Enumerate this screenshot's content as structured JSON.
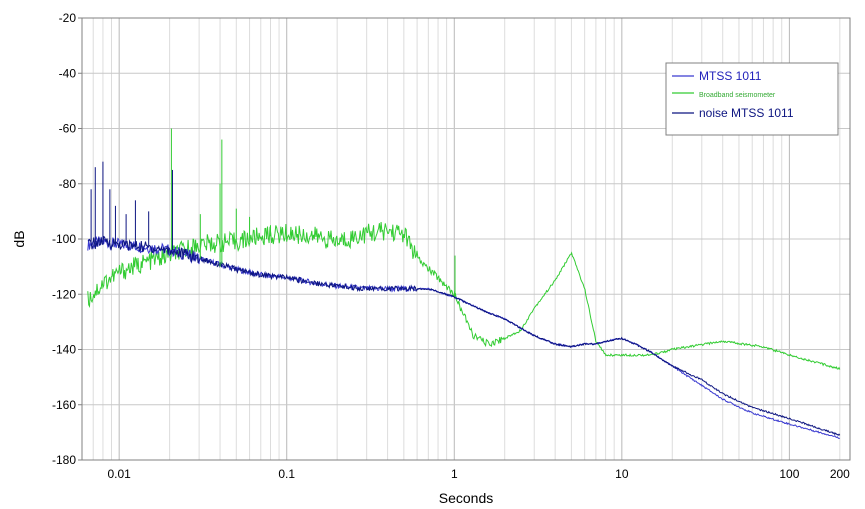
{
  "chart_data": {
    "type": "line",
    "xlabel": "Seconds",
    "ylabel": "dB",
    "xscale": "log",
    "xlim": [
      0.006,
      230
    ],
    "ylim": [
      -180,
      -20
    ],
    "yticks": [
      -20,
      -40,
      -60,
      -80,
      -100,
      -120,
      -140,
      -160,
      -180
    ],
    "xticks": [
      {
        "value": 0.01,
        "label": "0.01"
      },
      {
        "value": 0.1,
        "label": "0.1"
      },
      {
        "value": 1,
        "label": "1"
      },
      {
        "value": 10,
        "label": "10"
      },
      {
        "value": 100,
        "label": "100"
      },
      {
        "value": 200,
        "label": "200"
      }
    ],
    "grid": true,
    "legend_position": "top-right",
    "series": [
      {
        "name": "MTSS 1011",
        "color": "#3a3ad0",
        "points": [
          [
            0.0065,
            -102
          ],
          [
            0.008,
            -101
          ],
          [
            0.01,
            -102
          ],
          [
            0.015,
            -103
          ],
          [
            0.02,
            -104
          ],
          [
            0.03,
            -107
          ],
          [
            0.05,
            -111
          ],
          [
            0.07,
            -113
          ],
          [
            0.1,
            -114
          ],
          [
            0.15,
            -116
          ],
          [
            0.2,
            -117
          ],
          [
            0.3,
            -118
          ],
          [
            0.5,
            -118
          ],
          [
            0.7,
            -118
          ],
          [
            1,
            -121
          ],
          [
            1.5,
            -126
          ],
          [
            2,
            -129
          ],
          [
            3,
            -135
          ],
          [
            4,
            -138
          ],
          [
            5,
            -139
          ],
          [
            6,
            -138
          ],
          [
            7,
            -138
          ],
          [
            8,
            -137
          ],
          [
            10,
            -136
          ],
          [
            12,
            -138
          ],
          [
            15,
            -141
          ],
          [
            20,
            -146
          ],
          [
            30,
            -153
          ],
          [
            40,
            -158
          ],
          [
            60,
            -163
          ],
          [
            100,
            -167
          ],
          [
            200,
            -172
          ]
        ]
      },
      {
        "name": "Broadband seismometer",
        "color": "#33cc33",
        "points": [
          [
            0.0065,
            -122
          ],
          [
            0.008,
            -116
          ],
          [
            0.01,
            -112
          ],
          [
            0.015,
            -108
          ],
          [
            0.02,
            -106
          ],
          [
            0.03,
            -102
          ],
          [
            0.05,
            -101
          ],
          [
            0.07,
            -99
          ],
          [
            0.1,
            -98
          ],
          [
            0.15,
            -99
          ],
          [
            0.2,
            -101
          ],
          [
            0.3,
            -98
          ],
          [
            0.4,
            -97
          ],
          [
            0.5,
            -98
          ],
          [
            0.6,
            -107
          ],
          [
            0.8,
            -114
          ],
          [
            1,
            -120
          ],
          [
            1.3,
            -135
          ],
          [
            1.6,
            -138
          ],
          [
            2,
            -136
          ],
          [
            2.5,
            -133
          ],
          [
            3,
            -125
          ],
          [
            4,
            -115
          ],
          [
            5,
            -105
          ],
          [
            6,
            -118
          ],
          [
            7,
            -137
          ],
          [
            8,
            -142
          ],
          [
            10,
            -142
          ],
          [
            15,
            -142
          ],
          [
            20,
            -140
          ],
          [
            40,
            -137
          ],
          [
            70,
            -139
          ],
          [
            100,
            -142
          ],
          [
            200,
            -147
          ]
        ]
      },
      {
        "name": "noise MTSS 1011",
        "color": "#0c1480",
        "points": [
          [
            0.0065,
            -102
          ],
          [
            0.008,
            -101
          ],
          [
            0.01,
            -102
          ],
          [
            0.015,
            -103
          ],
          [
            0.02,
            -104
          ],
          [
            0.03,
            -107
          ],
          [
            0.05,
            -111
          ],
          [
            0.07,
            -113
          ],
          [
            0.1,
            -114
          ],
          [
            0.15,
            -116
          ],
          [
            0.2,
            -117
          ],
          [
            0.3,
            -118
          ],
          [
            0.5,
            -118
          ],
          [
            0.7,
            -118
          ],
          [
            1,
            -121
          ],
          [
            1.5,
            -126
          ],
          [
            2,
            -129
          ],
          [
            3,
            -135
          ],
          [
            4,
            -138
          ],
          [
            5,
            -139
          ],
          [
            6,
            -138
          ],
          [
            7,
            -138
          ],
          [
            8,
            -137
          ],
          [
            10,
            -136
          ],
          [
            12,
            -138
          ],
          [
            15,
            -141
          ],
          [
            20,
            -146
          ],
          [
            30,
            -151
          ],
          [
            40,
            -156
          ],
          [
            60,
            -161
          ],
          [
            100,
            -165
          ],
          [
            200,
            -171
          ]
        ]
      }
    ]
  }
}
